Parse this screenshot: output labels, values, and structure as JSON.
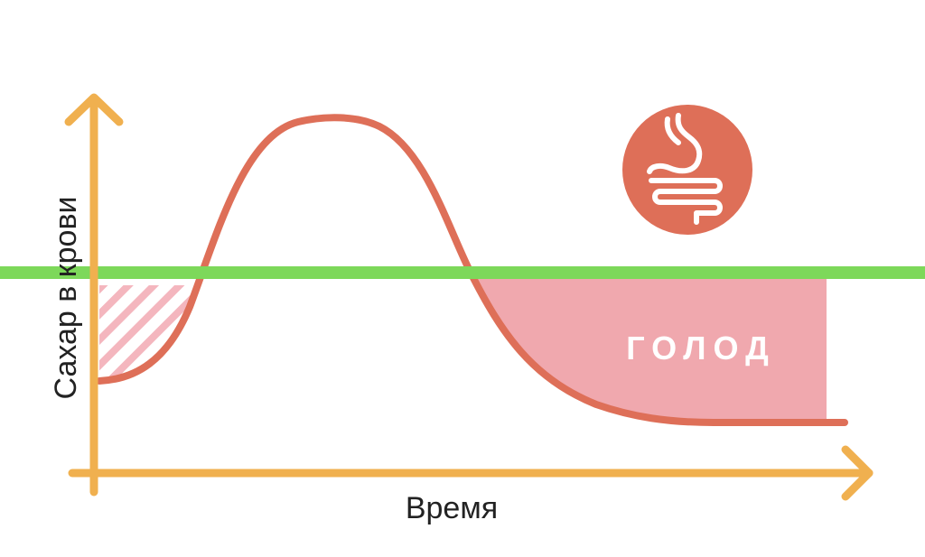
{
  "diagram": {
    "axes": {
      "x_label": "Время",
      "y_label": "Сахар в крови"
    },
    "regions": {
      "hunger_label": "ГОЛОД"
    },
    "icon": {
      "name": "stomach-icon"
    },
    "colors": {
      "axis": "#F0B04F",
      "curve": "#DE6F58",
      "threshold": "#7DD85A",
      "hunger_fill": "#F0A8AE",
      "hatch": "#F4B6BE",
      "icon_bg": "#DE6F58",
      "icon_fg": "#ffffff"
    }
  }
}
